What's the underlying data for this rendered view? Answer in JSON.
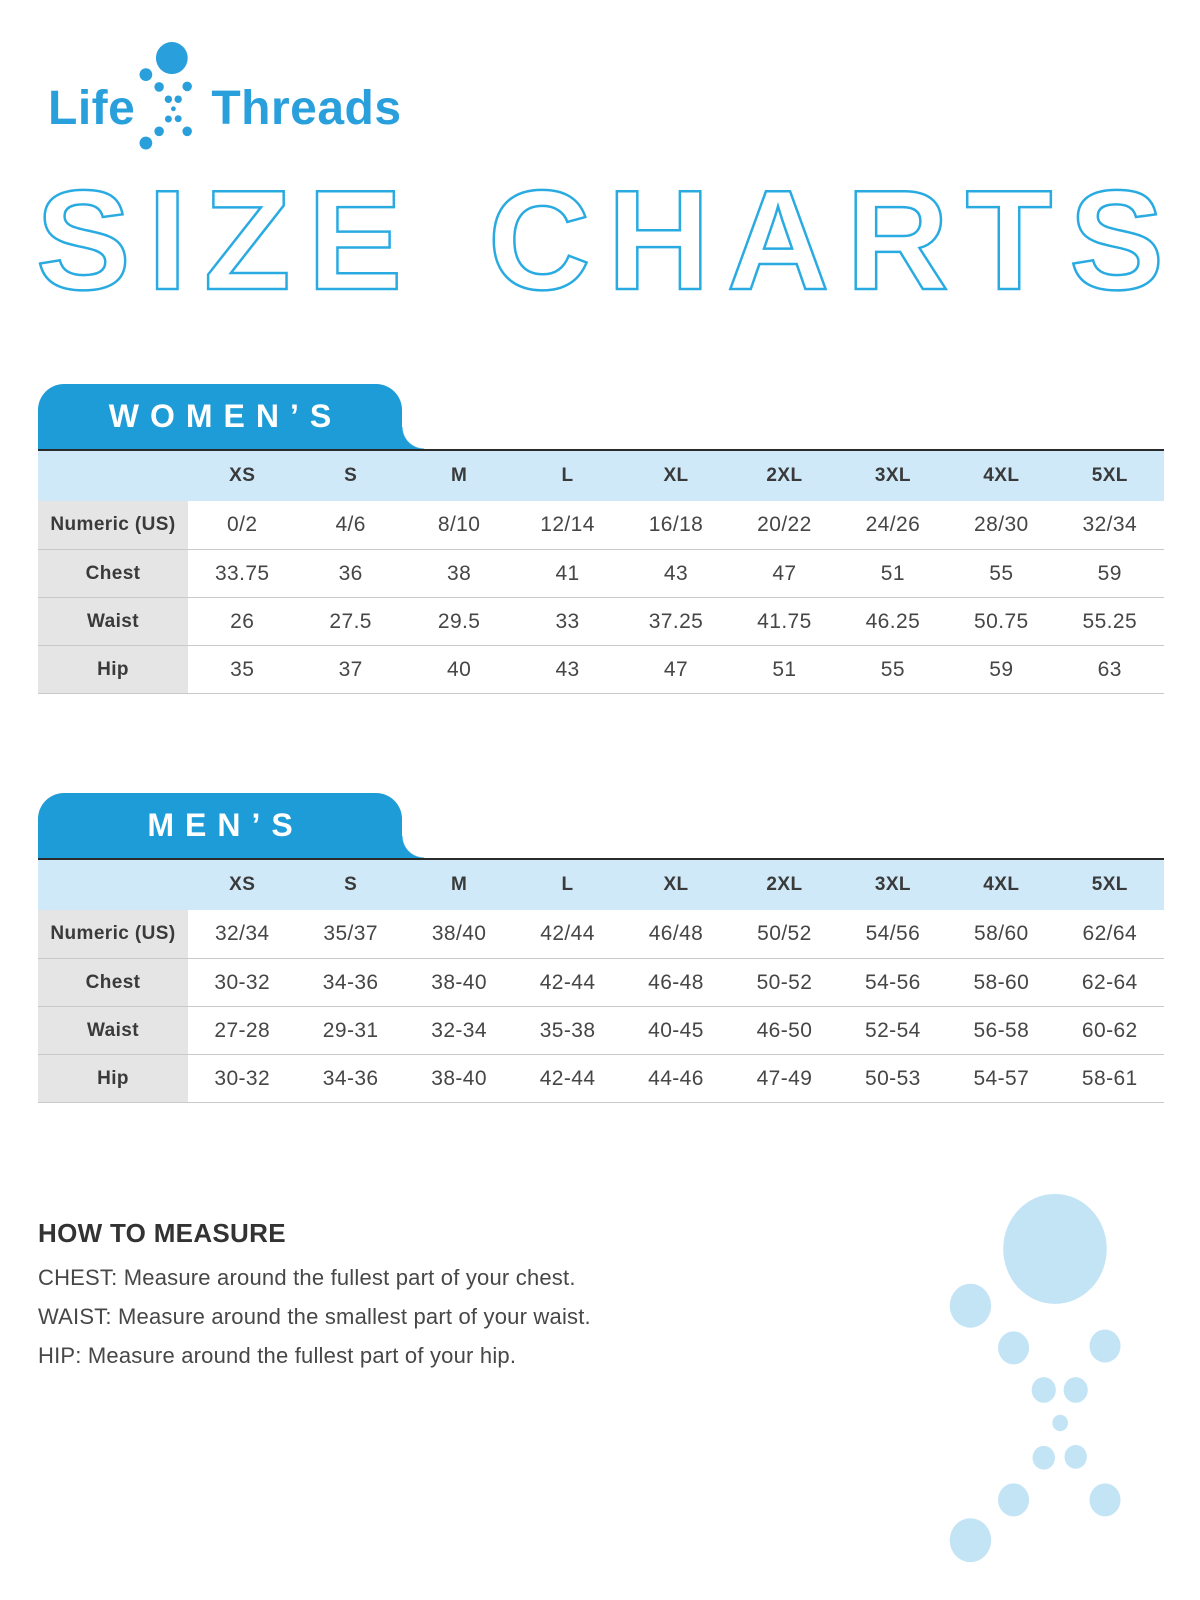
{
  "brand": {
    "life": "Life",
    "threads": "Threads"
  },
  "page_title": "SIZE CHARTS",
  "colors": {
    "brand_blue": "#29a0dc",
    "outline_blue": "#29abe2",
    "tab_blue": "#1e9cd8",
    "header_blue": "#cfe9f8",
    "label_gray": "#e5e5e5",
    "decoration_blue": "#c2e4f5"
  },
  "icons": {
    "logo_mark": "dot-figure",
    "decoration": "dot-figure"
  },
  "tables": [
    {
      "title": "WOMEN’S",
      "sizes": [
        "XS",
        "S",
        "M",
        "L",
        "XL",
        "2XL",
        "3XL",
        "4XL",
        "5XL"
      ],
      "rows": [
        {
          "label": "Numeric (US)",
          "values": [
            "0/2",
            "4/6",
            "8/10",
            "12/14",
            "16/18",
            "20/22",
            "24/26",
            "28/30",
            "32/34"
          ]
        },
        {
          "label": "Chest",
          "values": [
            "33.75",
            "36",
            "38",
            "41",
            "43",
            "47",
            "51",
            "55",
            "59"
          ]
        },
        {
          "label": "Waist",
          "values": [
            "26",
            "27.5",
            "29.5",
            "33",
            "37.25",
            "41.75",
            "46.25",
            "50.75",
            "55.25"
          ]
        },
        {
          "label": "Hip",
          "values": [
            "35",
            "37",
            "40",
            "43",
            "47",
            "51",
            "55",
            "59",
            "63"
          ]
        }
      ]
    },
    {
      "title": "MEN’S",
      "sizes": [
        "XS",
        "S",
        "M",
        "L",
        "XL",
        "2XL",
        "3XL",
        "4XL",
        "5XL"
      ],
      "rows": [
        {
          "label": "Numeric (US)",
          "values": [
            "32/34",
            "35/37",
            "38/40",
            "42/44",
            "46/48",
            "50/52",
            "54/56",
            "58/60",
            "62/64"
          ]
        },
        {
          "label": "Chest",
          "values": [
            "30-32",
            "34-36",
            "38-40",
            "42-44",
            "46-48",
            "50-52",
            "54-56",
            "58-60",
            "62-64"
          ]
        },
        {
          "label": "Waist",
          "values": [
            "27-28",
            "29-31",
            "32-34",
            "35-38",
            "40-45",
            "46-50",
            "52-54",
            "56-58",
            "60-62"
          ]
        },
        {
          "label": "Hip",
          "values": [
            "30-32",
            "34-36",
            "38-40",
            "42-44",
            "44-46",
            "47-49",
            "50-53",
            "54-57",
            "58-61"
          ]
        }
      ]
    }
  ],
  "how_to_measure": {
    "heading": "HOW TO MEASURE",
    "lines": [
      "CHEST: Measure around the fullest part of your chest.",
      "WAIST: Measure around the smallest part of your waist.",
      "HIP: Measure around the fullest part of your hip."
    ]
  }
}
